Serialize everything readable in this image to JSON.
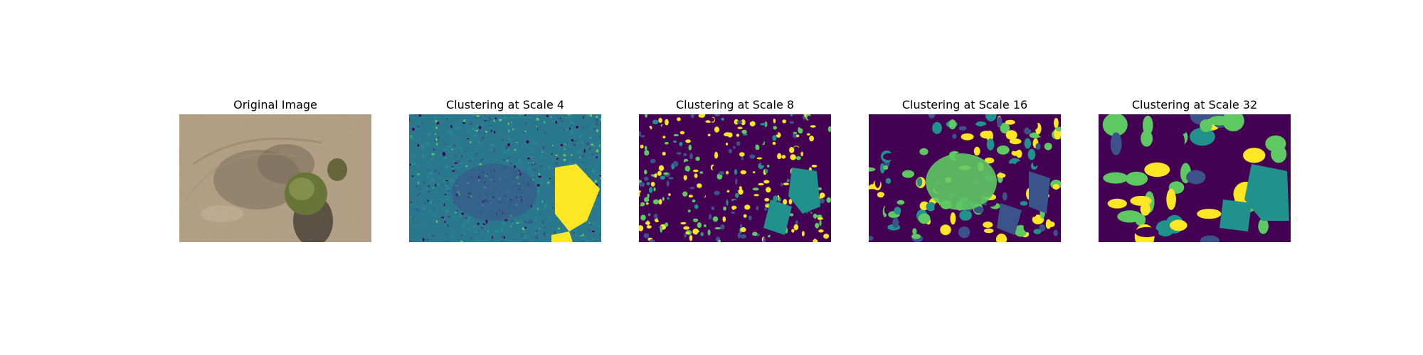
{
  "figure": {
    "panels": [
      {
        "title": "Original Image",
        "kind": "photo"
      },
      {
        "title": "Clustering at Scale 4",
        "kind": "cluster"
      },
      {
        "title": "Clustering at Scale 8",
        "kind": "cluster"
      },
      {
        "title": "Clustering at Scale 16",
        "kind": "cluster"
      },
      {
        "title": "Clustering at Scale 32",
        "kind": "cluster"
      }
    ],
    "colormap": [
      "#440154",
      "#3b528b",
      "#21918c",
      "#5ec962",
      "#fde725"
    ],
    "photo_colors": [
      "#b9a78c",
      "#8c7a62",
      "#5f5442",
      "#6f7a3a"
    ]
  }
}
